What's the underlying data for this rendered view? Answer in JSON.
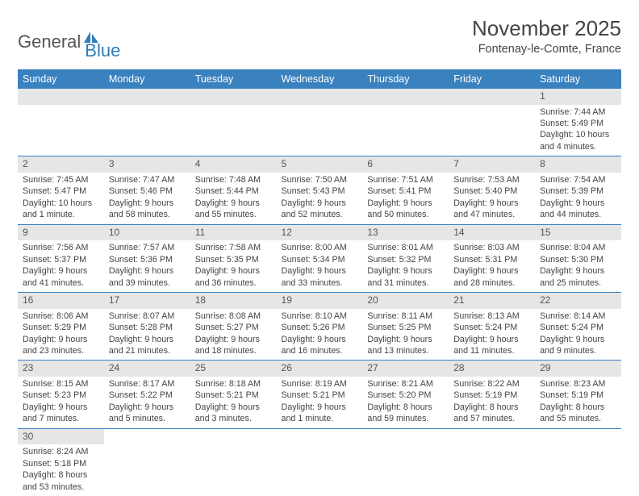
{
  "logo": {
    "main": "General",
    "sub": "Blue"
  },
  "header": {
    "title": "November 2025",
    "location": "Fontenay-le-Comte, France"
  },
  "colors": {
    "header_bg": "#3a81bf",
    "header_text": "#ffffff",
    "daynum_bg": "#e6e6e6",
    "border": "#3a81bf",
    "logo_sub": "#2f7db8"
  },
  "weekdays": [
    "Sunday",
    "Monday",
    "Tuesday",
    "Wednesday",
    "Thursday",
    "Friday",
    "Saturday"
  ],
  "weeks": [
    [
      {
        "empty": true
      },
      {
        "empty": true
      },
      {
        "empty": true
      },
      {
        "empty": true
      },
      {
        "empty": true
      },
      {
        "empty": true
      },
      {
        "num": "1",
        "sunrise": "Sunrise: 7:44 AM",
        "sunset": "Sunset: 5:49 PM",
        "day1": "Daylight: 10 hours",
        "day2": "and 4 minutes."
      }
    ],
    [
      {
        "num": "2",
        "sunrise": "Sunrise: 7:45 AM",
        "sunset": "Sunset: 5:47 PM",
        "day1": "Daylight: 10 hours",
        "day2": "and 1 minute."
      },
      {
        "num": "3",
        "sunrise": "Sunrise: 7:47 AM",
        "sunset": "Sunset: 5:46 PM",
        "day1": "Daylight: 9 hours",
        "day2": "and 58 minutes."
      },
      {
        "num": "4",
        "sunrise": "Sunrise: 7:48 AM",
        "sunset": "Sunset: 5:44 PM",
        "day1": "Daylight: 9 hours",
        "day2": "and 55 minutes."
      },
      {
        "num": "5",
        "sunrise": "Sunrise: 7:50 AM",
        "sunset": "Sunset: 5:43 PM",
        "day1": "Daylight: 9 hours",
        "day2": "and 52 minutes."
      },
      {
        "num": "6",
        "sunrise": "Sunrise: 7:51 AM",
        "sunset": "Sunset: 5:41 PM",
        "day1": "Daylight: 9 hours",
        "day2": "and 50 minutes."
      },
      {
        "num": "7",
        "sunrise": "Sunrise: 7:53 AM",
        "sunset": "Sunset: 5:40 PM",
        "day1": "Daylight: 9 hours",
        "day2": "and 47 minutes."
      },
      {
        "num": "8",
        "sunrise": "Sunrise: 7:54 AM",
        "sunset": "Sunset: 5:39 PM",
        "day1": "Daylight: 9 hours",
        "day2": "and 44 minutes."
      }
    ],
    [
      {
        "num": "9",
        "sunrise": "Sunrise: 7:56 AM",
        "sunset": "Sunset: 5:37 PM",
        "day1": "Daylight: 9 hours",
        "day2": "and 41 minutes."
      },
      {
        "num": "10",
        "sunrise": "Sunrise: 7:57 AM",
        "sunset": "Sunset: 5:36 PM",
        "day1": "Daylight: 9 hours",
        "day2": "and 39 minutes."
      },
      {
        "num": "11",
        "sunrise": "Sunrise: 7:58 AM",
        "sunset": "Sunset: 5:35 PM",
        "day1": "Daylight: 9 hours",
        "day2": "and 36 minutes."
      },
      {
        "num": "12",
        "sunrise": "Sunrise: 8:00 AM",
        "sunset": "Sunset: 5:34 PM",
        "day1": "Daylight: 9 hours",
        "day2": "and 33 minutes."
      },
      {
        "num": "13",
        "sunrise": "Sunrise: 8:01 AM",
        "sunset": "Sunset: 5:32 PM",
        "day1": "Daylight: 9 hours",
        "day2": "and 31 minutes."
      },
      {
        "num": "14",
        "sunrise": "Sunrise: 8:03 AM",
        "sunset": "Sunset: 5:31 PM",
        "day1": "Daylight: 9 hours",
        "day2": "and 28 minutes."
      },
      {
        "num": "15",
        "sunrise": "Sunrise: 8:04 AM",
        "sunset": "Sunset: 5:30 PM",
        "day1": "Daylight: 9 hours",
        "day2": "and 25 minutes."
      }
    ],
    [
      {
        "num": "16",
        "sunrise": "Sunrise: 8:06 AM",
        "sunset": "Sunset: 5:29 PM",
        "day1": "Daylight: 9 hours",
        "day2": "and 23 minutes."
      },
      {
        "num": "17",
        "sunrise": "Sunrise: 8:07 AM",
        "sunset": "Sunset: 5:28 PM",
        "day1": "Daylight: 9 hours",
        "day2": "and 21 minutes."
      },
      {
        "num": "18",
        "sunrise": "Sunrise: 8:08 AM",
        "sunset": "Sunset: 5:27 PM",
        "day1": "Daylight: 9 hours",
        "day2": "and 18 minutes."
      },
      {
        "num": "19",
        "sunrise": "Sunrise: 8:10 AM",
        "sunset": "Sunset: 5:26 PM",
        "day1": "Daylight: 9 hours",
        "day2": "and 16 minutes."
      },
      {
        "num": "20",
        "sunrise": "Sunrise: 8:11 AM",
        "sunset": "Sunset: 5:25 PM",
        "day1": "Daylight: 9 hours",
        "day2": "and 13 minutes."
      },
      {
        "num": "21",
        "sunrise": "Sunrise: 8:13 AM",
        "sunset": "Sunset: 5:24 PM",
        "day1": "Daylight: 9 hours",
        "day2": "and 11 minutes."
      },
      {
        "num": "22",
        "sunrise": "Sunrise: 8:14 AM",
        "sunset": "Sunset: 5:24 PM",
        "day1": "Daylight: 9 hours",
        "day2": "and 9 minutes."
      }
    ],
    [
      {
        "num": "23",
        "sunrise": "Sunrise: 8:15 AM",
        "sunset": "Sunset: 5:23 PM",
        "day1": "Daylight: 9 hours",
        "day2": "and 7 minutes."
      },
      {
        "num": "24",
        "sunrise": "Sunrise: 8:17 AM",
        "sunset": "Sunset: 5:22 PM",
        "day1": "Daylight: 9 hours",
        "day2": "and 5 minutes."
      },
      {
        "num": "25",
        "sunrise": "Sunrise: 8:18 AM",
        "sunset": "Sunset: 5:21 PM",
        "day1": "Daylight: 9 hours",
        "day2": "and 3 minutes."
      },
      {
        "num": "26",
        "sunrise": "Sunrise: 8:19 AM",
        "sunset": "Sunset: 5:21 PM",
        "day1": "Daylight: 9 hours",
        "day2": "and 1 minute."
      },
      {
        "num": "27",
        "sunrise": "Sunrise: 8:21 AM",
        "sunset": "Sunset: 5:20 PM",
        "day1": "Daylight: 8 hours",
        "day2": "and 59 minutes."
      },
      {
        "num": "28",
        "sunrise": "Sunrise: 8:22 AM",
        "sunset": "Sunset: 5:19 PM",
        "day1": "Daylight: 8 hours",
        "day2": "and 57 minutes."
      },
      {
        "num": "29",
        "sunrise": "Sunrise: 8:23 AM",
        "sunset": "Sunset: 5:19 PM",
        "day1": "Daylight: 8 hours",
        "day2": "and 55 minutes."
      }
    ],
    [
      {
        "num": "30",
        "sunrise": "Sunrise: 8:24 AM",
        "sunset": "Sunset: 5:18 PM",
        "day1": "Daylight: 8 hours",
        "day2": "and 53 minutes."
      },
      {
        "empty": true
      },
      {
        "empty": true
      },
      {
        "empty": true
      },
      {
        "empty": true
      },
      {
        "empty": true
      },
      {
        "empty": true
      }
    ]
  ]
}
